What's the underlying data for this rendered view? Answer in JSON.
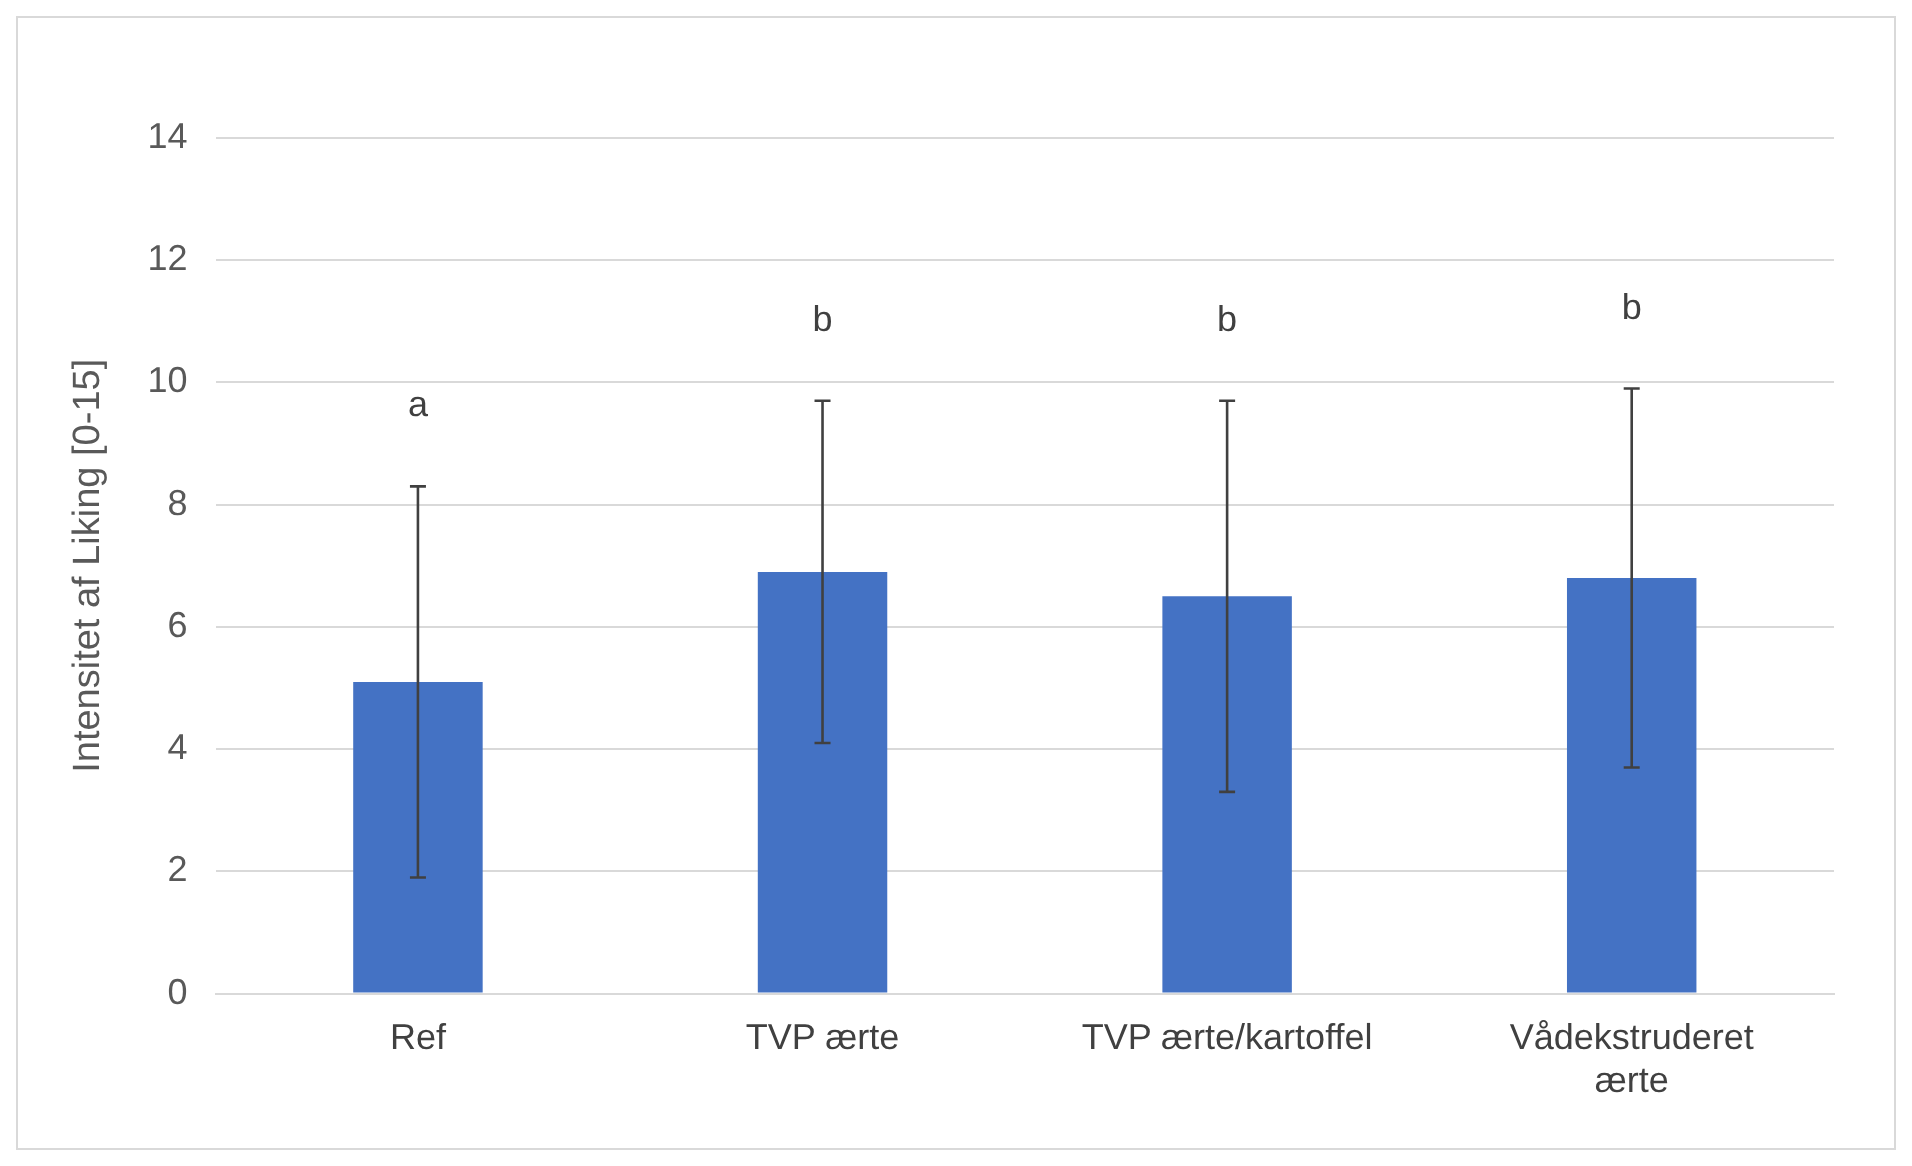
{
  "chart_data": {
    "type": "bar",
    "ylabel": "Intensitet af Liking [0-15]",
    "categories": [
      "Ref",
      "TVP ærte",
      "TVP ærte/kartoffel",
      "Vådekstruderet ærte"
    ],
    "values": [
      5.1,
      6.9,
      6.5,
      6.8
    ],
    "errors": [
      3.2,
      2.8,
      3.2,
      3.1
    ],
    "color": "#4472c4",
    "ylim": [
      0,
      14
    ],
    "yticks": [
      0,
      2,
      4,
      6,
      8,
      10,
      12,
      14
    ],
    "grid": "y",
    "legend": false,
    "annotations": [
      "a",
      "b",
      "b",
      "b"
    ]
  }
}
